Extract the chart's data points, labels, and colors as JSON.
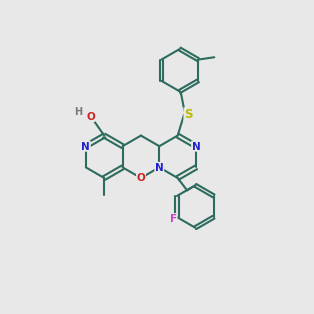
{
  "bg_color": "#e8e8e8",
  "bond_color": "#2d6b5e",
  "bond_width": 1.5,
  "dbl_off": 0.07,
  "atom_colors": {
    "N": "#2222cc",
    "O": "#cc2222",
    "S": "#bbbb00",
    "F": "#cc44cc",
    "H": "#777777",
    "C": "#2d6b5e"
  },
  "fs": 7.5
}
